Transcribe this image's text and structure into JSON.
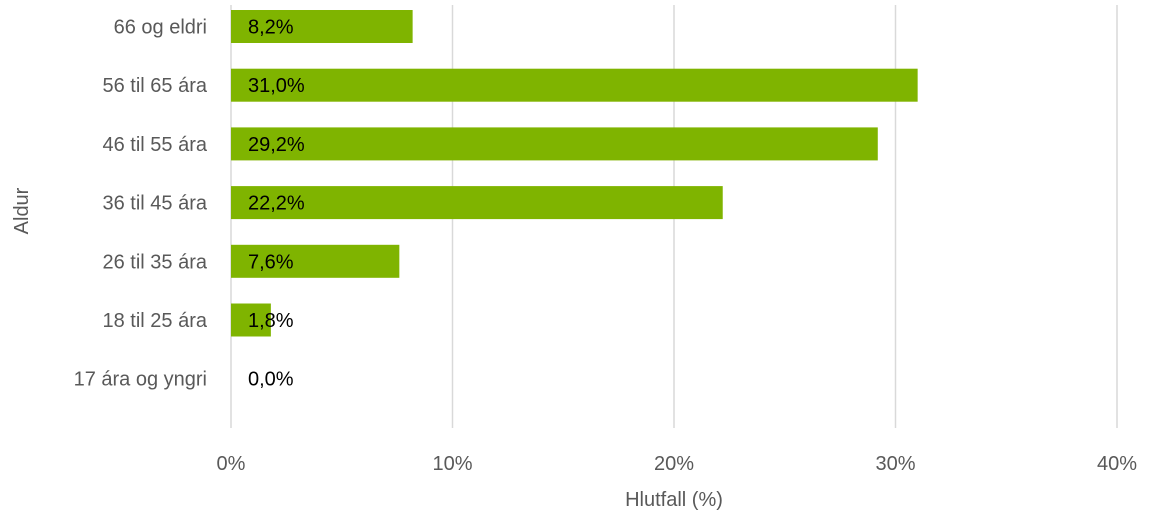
{
  "chart_data": {
    "type": "bar",
    "orientation": "horizontal",
    "categories": [
      "66 og eldri",
      "56 til 65 ára",
      "46 til 55 ára",
      "36 til 45 ára",
      "26 til 35 ára",
      "18 til 25 ára",
      "17 ára og yngri"
    ],
    "values": [
      8.2,
      31.0,
      29.2,
      22.2,
      7.6,
      1.8,
      0.0
    ],
    "data_labels": [
      "8,2%",
      "31,0%",
      "29,2%",
      "22,2%",
      "7,6%",
      "1,8%",
      "0,0%"
    ],
    "xlabel": "Hlutfall (%)",
    "ylabel": "Aldur",
    "xlim": [
      0,
      40
    ],
    "x_ticks": [
      0,
      10,
      20,
      30,
      40
    ],
    "x_tick_labels": [
      "0%",
      "10%",
      "20%",
      "30%",
      "40%"
    ],
    "grid": "vertical",
    "colors": {
      "bar": "#7fb400",
      "grid": "#d9d9d9",
      "text": "#595959"
    }
  }
}
